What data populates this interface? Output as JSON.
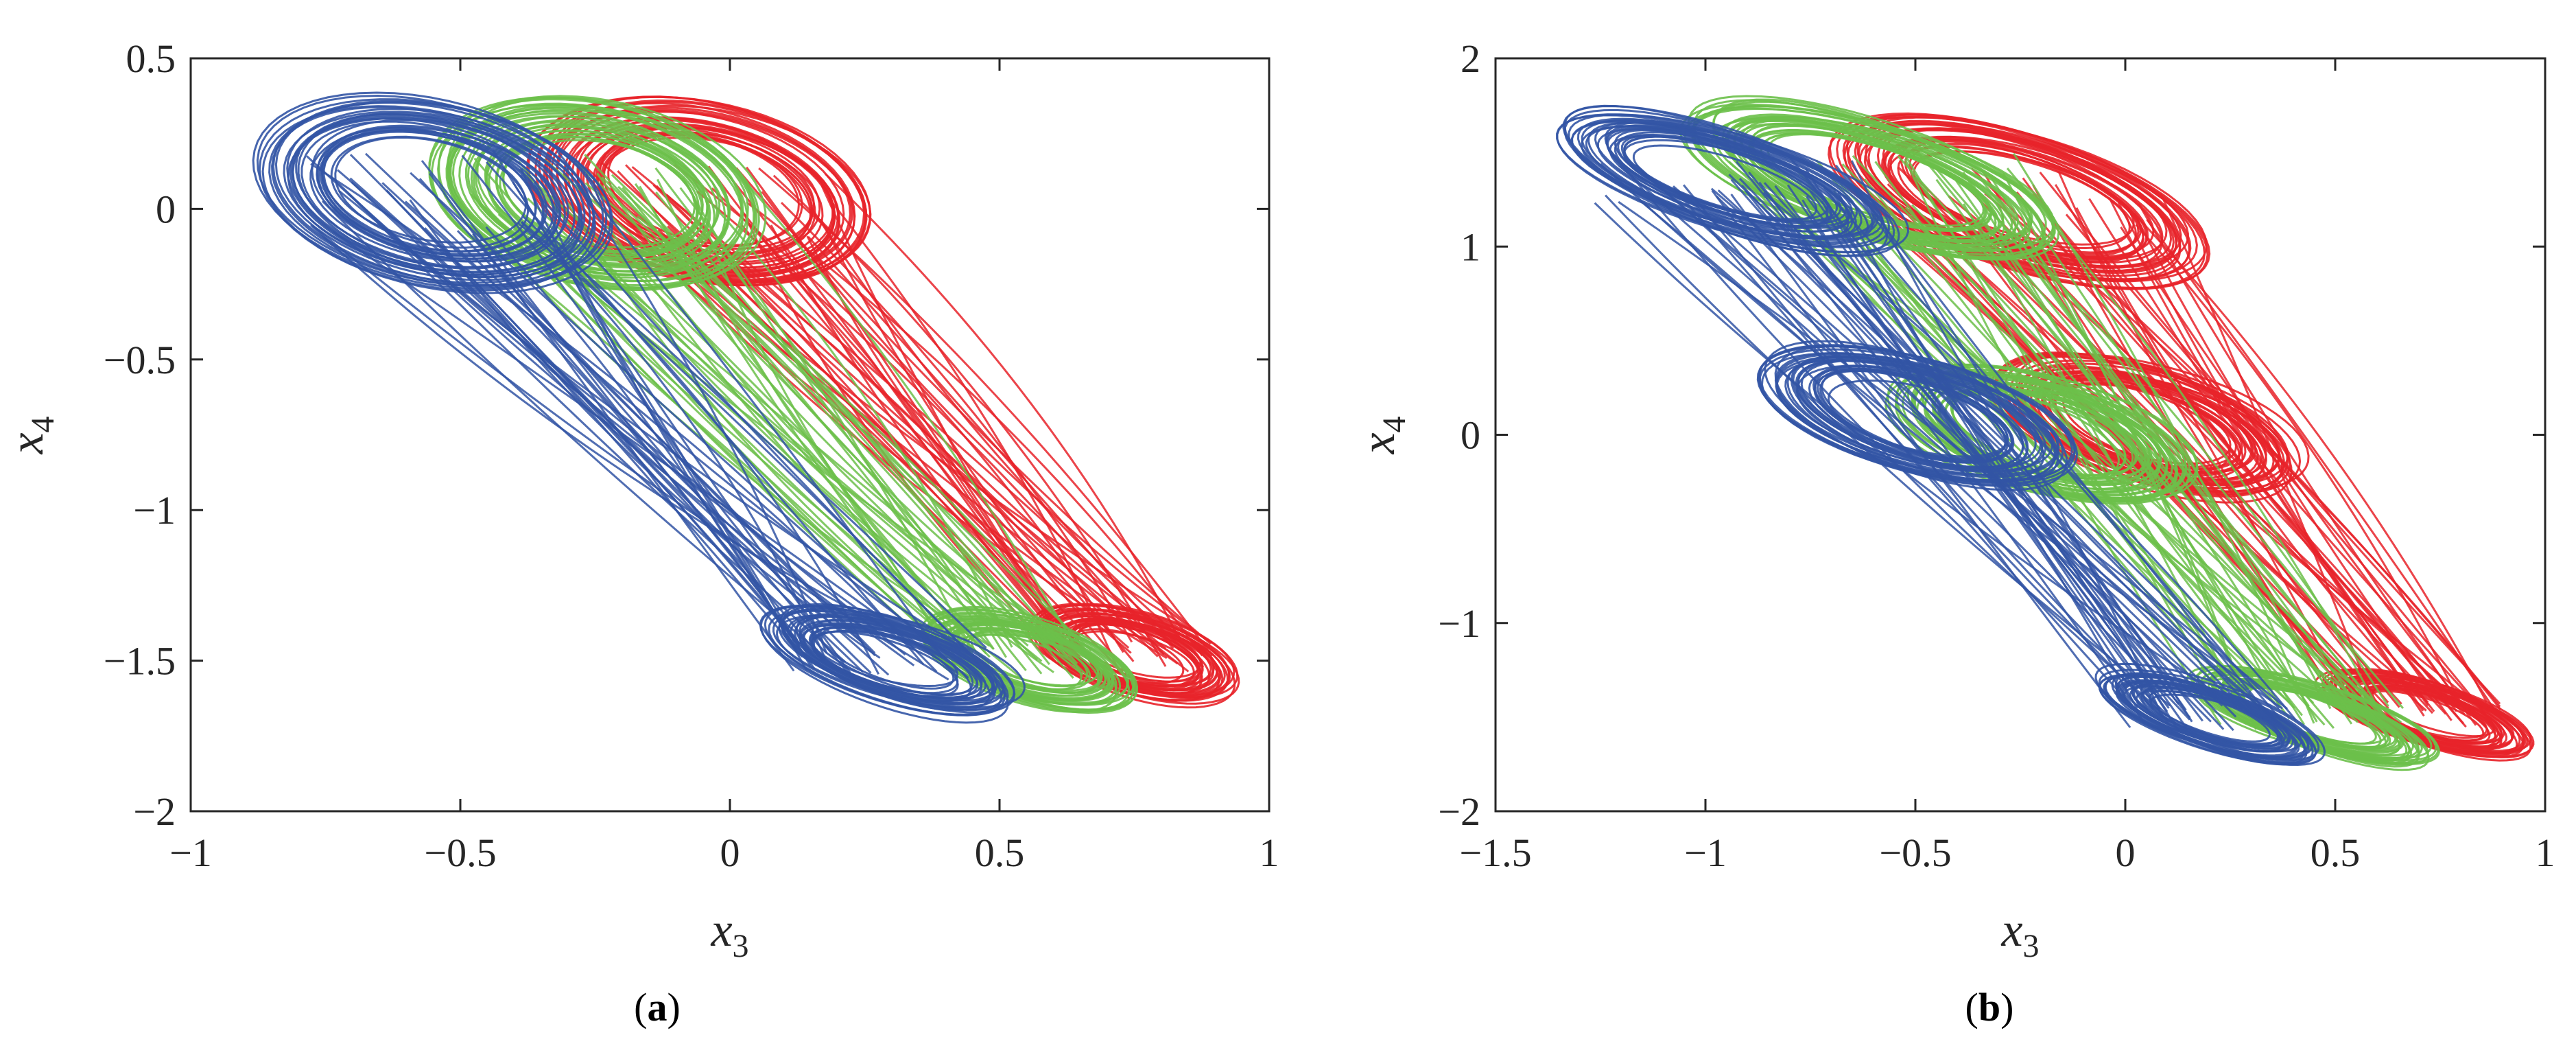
{
  "chart_data": [
    {
      "type": "line",
      "panel_label": "a",
      "xlabel": "x",
      "xlabel_sub": "3",
      "ylabel": "x",
      "ylabel_sub": "4",
      "xlim": [
        -1,
        1
      ],
      "ylim": [
        -2,
        0.5
      ],
      "xticks": [
        -1,
        -0.5,
        0,
        0.5,
        1
      ],
      "yticks": [
        -2,
        -1.5,
        -1,
        -0.5,
        0,
        0.5
      ],
      "xtick_labels": [
        "−1",
        "−0.5",
        "0",
        "0.5",
        "1"
      ],
      "ytick_labels": [
        "−2",
        "−1.5",
        "−1",
        "−0.5",
        "0",
        "0.5"
      ],
      "grid": false,
      "series": [
        {
          "color": "#E8232A",
          "x_range": [
            -0.45,
            1.0
          ],
          "y_range": [
            -1.65,
            0.35
          ],
          "lower_lobe": {
            "center": [
              0.75,
              -1.48
            ],
            "rx": 0.21,
            "ry": 0.13
          },
          "upper_lobe": {
            "center": [
              -0.05,
              0.05
            ],
            "rx": 0.34,
            "ry": 0.3
          }
        },
        {
          "color": "#6CC04A",
          "x_range": [
            -0.68,
            0.8
          ],
          "y_range": [
            -1.65,
            0.35
          ],
          "lower_lobe": {
            "center": [
              0.55,
              -1.5
            ],
            "rx": 0.22,
            "ry": 0.13
          },
          "upper_lobe": {
            "center": [
              -0.25,
              0.05
            ],
            "rx": 0.33,
            "ry": 0.3
          }
        },
        {
          "color": "#3355A5",
          "x_range": [
            -0.9,
            0.6
          ],
          "y_range": [
            -1.65,
            0.35
          ],
          "lower_lobe": {
            "center": [
              0.3,
              -1.5
            ],
            "rx": 0.26,
            "ry": 0.13
          },
          "upper_lobe": {
            "center": [
              -0.55,
              0.05
            ],
            "rx": 0.35,
            "ry": 0.3
          }
        }
      ]
    },
    {
      "type": "line",
      "panel_label": "b",
      "xlabel": "x",
      "xlabel_sub": "3",
      "ylabel": "x",
      "ylabel_sub": "4",
      "xlim": [
        -1.5,
        1
      ],
      "ylim": [
        -2,
        2
      ],
      "xticks": [
        -1.5,
        -1,
        -0.5,
        0,
        0.5,
        1
      ],
      "yticks": [
        -2,
        -1,
        0,
        1,
        2
      ],
      "xtick_labels": [
        "−1.5",
        "−1",
        "−0.5",
        "0",
        "0.5",
        "1"
      ],
      "ytick_labels": [
        "−2",
        "−1",
        "0",
        "1",
        "2"
      ],
      "grid": false,
      "series": [
        {
          "color": "#E8232A",
          "x_range": [
            -0.95,
            0.98
          ],
          "y_range": [
            -1.7,
            1.65
          ],
          "lower_lobe": {
            "center": [
              0.72,
              -1.48
            ],
            "rx": 0.28,
            "ry": 0.16
          },
          "upper_lobe": {
            "center": [
              -0.25,
              1.25
            ],
            "rx": 0.5,
            "ry": 0.35
          },
          "middle_lobe": {
            "center": [
              0.05,
              0.05
            ],
            "rx": 0.4,
            "ry": 0.3
          }
        },
        {
          "color": "#6CC04A",
          "x_range": [
            -1.15,
            0.8
          ],
          "y_range": [
            -1.7,
            1.65
          ],
          "lower_lobe": {
            "center": [
              0.45,
              -1.5
            ],
            "rx": 0.32,
            "ry": 0.16
          },
          "upper_lobe": {
            "center": [
              -0.6,
              1.35
            ],
            "rx": 0.5,
            "ry": 0.3
          },
          "middle_lobe": {
            "center": [
              -0.2,
              0.0
            ],
            "rx": 0.4,
            "ry": 0.3
          }
        },
        {
          "color": "#3355A5",
          "x_range": [
            -1.4,
            0.6
          ],
          "y_range": [
            -1.7,
            1.65
          ],
          "lower_lobe": {
            "center": [
              0.2,
              -1.5
            ],
            "rx": 0.3,
            "ry": 0.16
          },
          "upper_lobe": {
            "center": [
              -0.95,
              1.35
            ],
            "rx": 0.45,
            "ry": 0.25
          },
          "middle_lobe": {
            "center": [
              -0.5,
              0.1
            ],
            "rx": 0.42,
            "ry": 0.3
          }
        }
      ]
    }
  ]
}
